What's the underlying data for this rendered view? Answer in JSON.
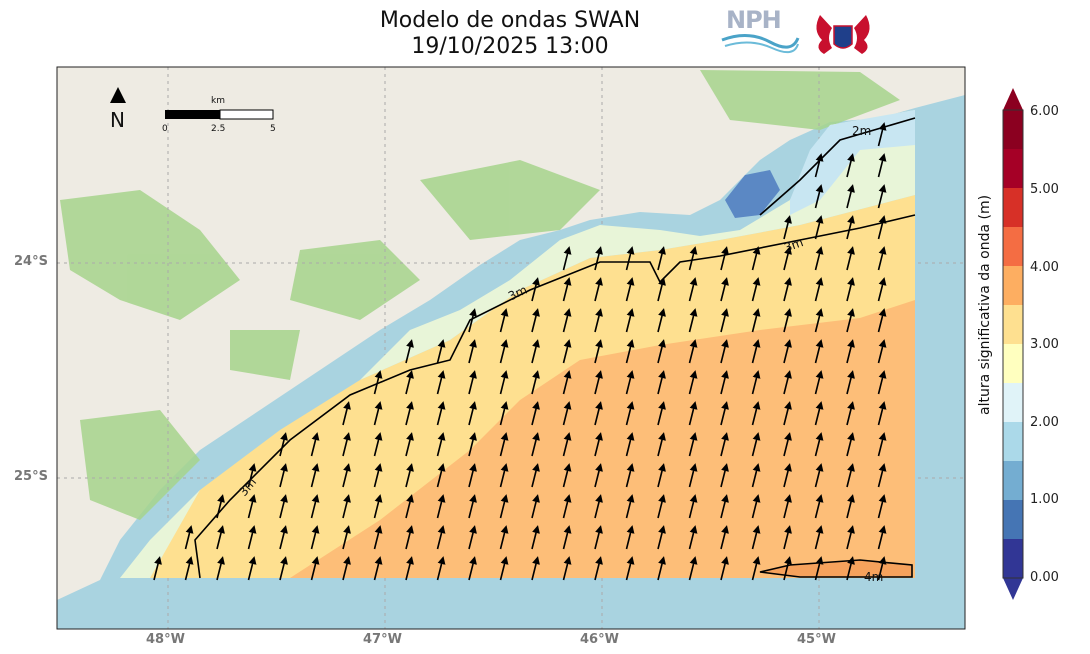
{
  "title": "Modelo de ondas SWAN",
  "datetime": "19/10/2025 13:00",
  "logos": [
    "NPH",
    "seahorse-emblem"
  ],
  "north_label": "N",
  "scale_bar": {
    "unit": "km",
    "ticks": [
      "0",
      "2.5",
      "5"
    ]
  },
  "axes": {
    "x_ticks": [
      "48°W",
      "47°W",
      "46°W",
      "45°W"
    ],
    "y_ticks": [
      "24°S",
      "25°S"
    ]
  },
  "contour_labels": [
    "2m",
    "3m",
    "3m",
    "3m",
    "4m"
  ],
  "colorbar": {
    "label": "altura significativa da onda (m)",
    "ticks": [
      "0.00",
      "1.00",
      "2.00",
      "3.00",
      "4.00",
      "5.00",
      "6.00"
    ],
    "colors": [
      "#313695",
      "#4575b4",
      "#74add1",
      "#abd9e9",
      "#e0f3f8",
      "#ffffbf",
      "#fee090",
      "#fdae61",
      "#f46d43",
      "#d73027",
      "#a50026",
      "#8b0020"
    ]
  },
  "colors": {
    "ocean": "#a9d3e0",
    "land": "#eeebe3",
    "green": "#a6d48c"
  }
}
